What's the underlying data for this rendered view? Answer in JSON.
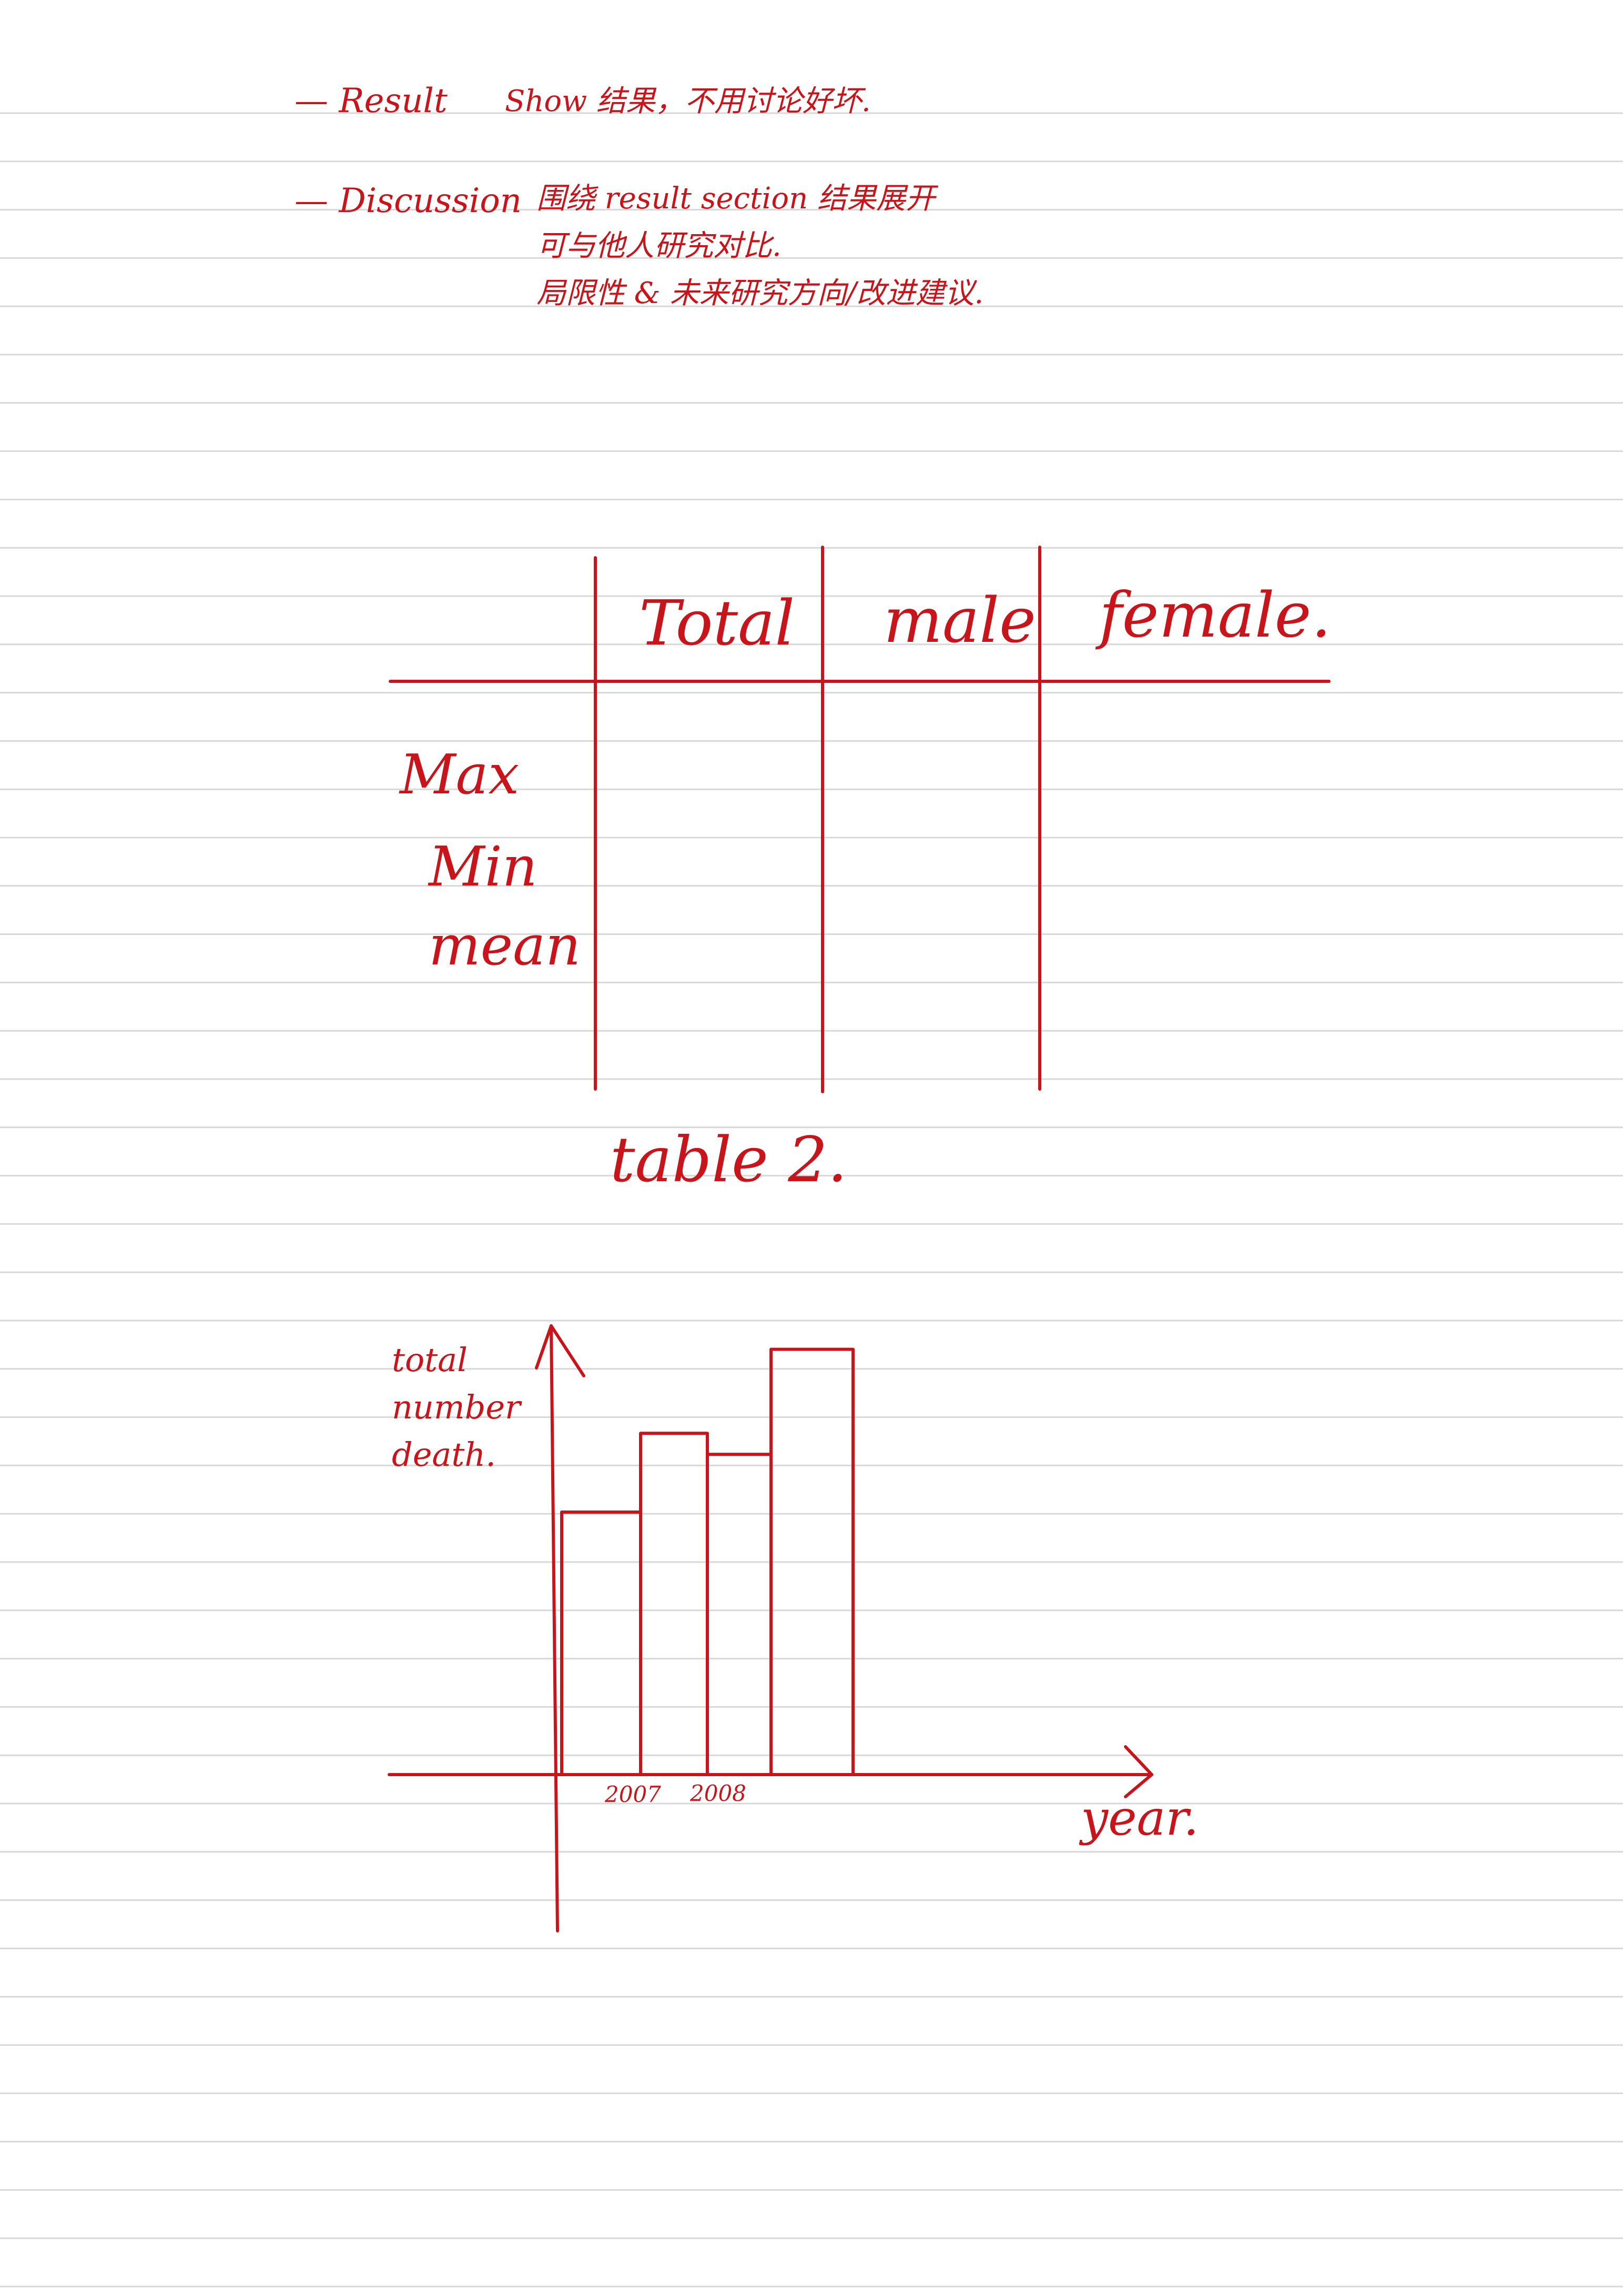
{
  "notes": [
    {
      "label": "— Result",
      "lines": [
        "Show 结果，不用讨论好坏."
      ]
    },
    {
      "label": "— Discussion",
      "lines": [
        "围绕 result section 结果展开",
        "可与他人研究对比.",
        "局限性 & 未来研究方向/改进建议."
      ]
    }
  ],
  "table": {
    "headers": [
      "Total",
      "male",
      "female."
    ],
    "rows": [
      "Max",
      "Min",
      "mean"
    ],
    "caption": "table 2."
  },
  "chart_data": {
    "type": "bar",
    "ylabel": "total number death.",
    "xlabel": "year.",
    "x_tick_labels": [
      "2007",
      "2008"
    ],
    "values": [
      0.5,
      0.65,
      0.61,
      0.81
    ],
    "ylim": [
      0,
      1
    ],
    "grid": false,
    "legend": "none"
  },
  "colors": {
    "ink": "#c8141b",
    "rule": "#d8d8d8"
  }
}
